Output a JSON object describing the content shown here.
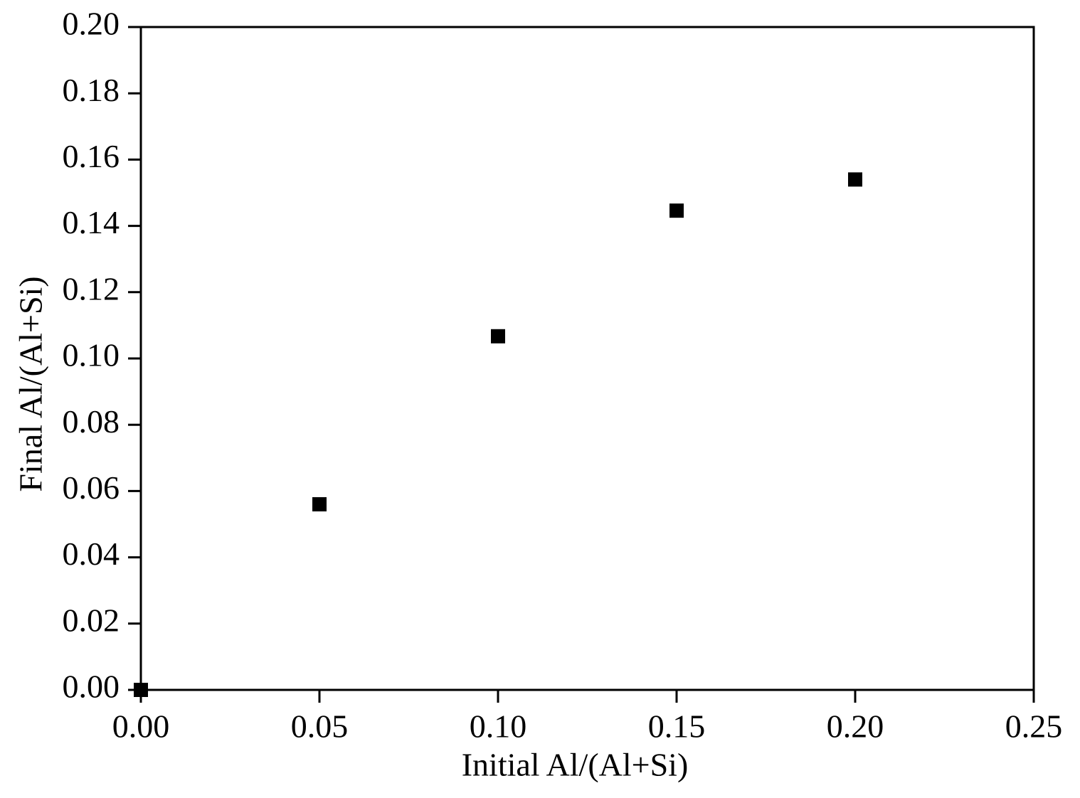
{
  "chart_data": {
    "type": "scatter",
    "x_label": "Initial Al/(Al+Si)",
    "y_label": "Final Al/(Al+Si)",
    "x": [
      0.0,
      0.05,
      0.1,
      0.15,
      0.2
    ],
    "series": [
      {
        "color": "#000000",
        "values": [
          0.0,
          0.056,
          0.1067,
          0.1446,
          0.154
        ]
      }
    ],
    "xlim": [
      0,
      0.25
    ],
    "ylim": [
      0,
      0.2
    ],
    "xticks": [
      {
        "value": 0,
        "label": "0.00"
      },
      {
        "value": 0.05,
        "label": "0.05"
      },
      {
        "value": 0.1,
        "label": "0.10"
      },
      {
        "value": 0.15,
        "label": "0.15"
      },
      {
        "value": 0.2,
        "label": "0.20"
      },
      {
        "value": 0.25,
        "label": "0.25"
      }
    ],
    "yticks": [
      {
        "value": 0,
        "label": "0.00"
      },
      {
        "value": 0.02,
        "label": "0.02"
      },
      {
        "value": 0.04,
        "label": "0.04"
      },
      {
        "value": 0.06,
        "label": "0.06"
      },
      {
        "value": 0.08,
        "label": "0.08"
      },
      {
        "value": 0.1,
        "label": "0.10"
      },
      {
        "value": 0.12,
        "label": "0.12"
      },
      {
        "value": 0.14,
        "label": "0.14"
      },
      {
        "value": 0.16,
        "label": "0.16"
      },
      {
        "value": 0.18,
        "label": "0.18"
      },
      {
        "value": 0.2,
        "label": "0.20"
      }
    ],
    "grid": false
  }
}
